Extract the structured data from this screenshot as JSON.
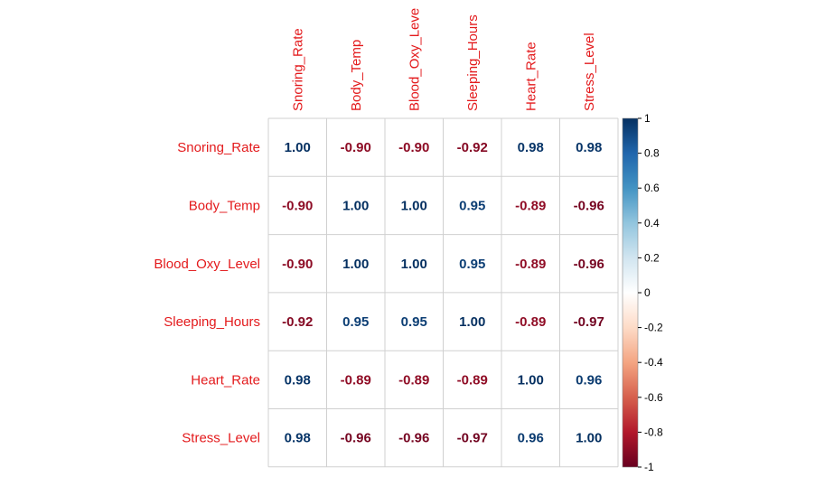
{
  "chart_data": {
    "type": "heatmap",
    "variables": [
      "Snoring_Rate",
      "Body_Temp",
      "Blood_Oxy_Level",
      "Sleeping_Hours",
      "Heart_Rate",
      "Stress_Level"
    ],
    "column_labels_visible": [
      "Snoring_Rate",
      "Body_Temp",
      "Blood_Oxy_Leve",
      "Sleeping_Hours",
      "Heart_Rate",
      "Stress_Level"
    ],
    "matrix": [
      [
        1.0,
        -0.9,
        -0.9,
        -0.92,
        0.98,
        0.98
      ],
      [
        -0.9,
        1.0,
        1.0,
        0.95,
        -0.89,
        -0.96
      ],
      [
        -0.9,
        1.0,
        1.0,
        0.95,
        -0.89,
        -0.96
      ],
      [
        -0.92,
        0.95,
        0.95,
        1.0,
        -0.89,
        -0.97
      ],
      [
        0.98,
        -0.89,
        -0.89,
        -0.89,
        1.0,
        0.96
      ],
      [
        0.98,
        -0.96,
        -0.96,
        -0.97,
        0.96,
        1.0
      ]
    ],
    "value_labels": [
      [
        "1.00",
        "-0.90",
        "-0.90",
        "-0.92",
        "0.98",
        "0.98"
      ],
      [
        "-0.90",
        "1.00",
        "1.00",
        "0.95",
        "-0.89",
        "-0.96"
      ],
      [
        "-0.90",
        "1.00",
        "1.00",
        "0.95",
        "-0.89",
        "-0.96"
      ],
      [
        "-0.92",
        "0.95",
        "0.95",
        "1.00",
        "-0.89",
        "-0.97"
      ],
      [
        "0.98",
        "-0.89",
        "-0.89",
        "-0.89",
        "1.00",
        "0.96"
      ],
      [
        "0.98",
        "-0.96",
        "-0.96",
        "-0.97",
        "0.96",
        "1.00"
      ]
    ],
    "colorbar": {
      "range": [
        -1,
        1
      ],
      "ticks": [
        1,
        0.8,
        0.6,
        0.4,
        0.2,
        0,
        -0.2,
        -0.4,
        -0.6,
        -0.8,
        -1
      ],
      "tick_labels": [
        "1",
        "0.8",
        "0.6",
        "0.4",
        "0.2",
        "0",
        "-0.2",
        "-0.4",
        "-0.6",
        "-0.8",
        "-1"
      ],
      "placement": "right"
    },
    "colors": {
      "label_color": "#e31a1c",
      "grid_color": "#d0d0d0",
      "palette": [
        "#67001f",
        "#b2182b",
        "#d6604d",
        "#f4a582",
        "#fddbc7",
        "#ffffff",
        "#d1e5f0",
        "#92c5de",
        "#4393c3",
        "#2166ac",
        "#053061"
      ]
    }
  }
}
